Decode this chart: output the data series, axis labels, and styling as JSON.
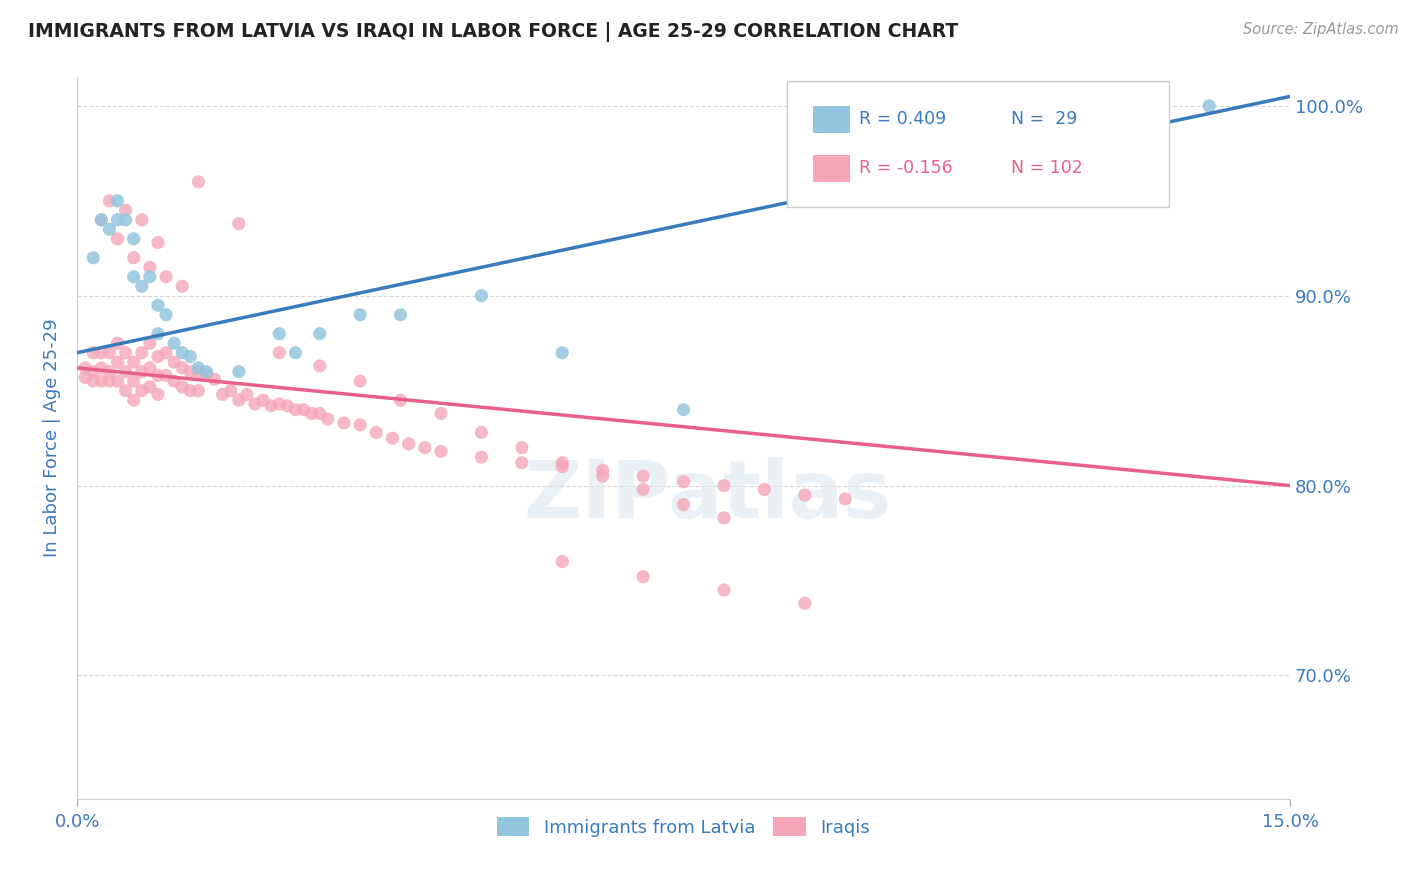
{
  "title": "IMMIGRANTS FROM LATVIA VS IRAQI IN LABOR FORCE | AGE 25-29 CORRELATION CHART",
  "source": "Source: ZipAtlas.com",
  "ylabel": "In Labor Force | Age 25-29",
  "xlim": [
    0.0,
    0.15
  ],
  "ylim": [
    0.635,
    1.015
  ],
  "x_ticks": [
    0.0,
    0.15
  ],
  "x_tick_labels": [
    "0.0%",
    "15.0%"
  ],
  "y_ticks": [
    0.7,
    0.8,
    0.9,
    1.0
  ],
  "y_tick_labels": [
    "70.0%",
    "80.0%",
    "90.0%",
    "100.0%"
  ],
  "legend_labels": [
    "Immigrants from Latvia",
    "Iraqis"
  ],
  "legend_r_values": [
    "R = 0.409",
    "R = -0.156"
  ],
  "legend_n_values": [
    "N =  29",
    "N = 102"
  ],
  "blue_color": "#92c5de",
  "pink_color": "#f4a6b8",
  "blue_line_color": "#3a7abf",
  "pink_line_color": "#e8608a",
  "tick_label_color": "#3a7abf",
  "watermark": "ZIPatlas",
  "blue_line_x": [
    0.0,
    0.15
  ],
  "blue_line_y": [
    0.87,
    1.005
  ],
  "pink_line_x": [
    0.0,
    0.15
  ],
  "pink_line_y": [
    0.862,
    0.8
  ],
  "blue_scatter_x": [
    0.002,
    0.003,
    0.004,
    0.005,
    0.005,
    0.006,
    0.007,
    0.007,
    0.008,
    0.009,
    0.01,
    0.01,
    0.011,
    0.012,
    0.013,
    0.014,
    0.015,
    0.016,
    0.02,
    0.025,
    0.027,
    0.03,
    0.035,
    0.04,
    0.05,
    0.06,
    0.075,
    0.11,
    0.14
  ],
  "blue_scatter_y": [
    0.92,
    0.94,
    0.935,
    0.94,
    0.95,
    0.94,
    0.93,
    0.91,
    0.905,
    0.91,
    0.895,
    0.88,
    0.89,
    0.875,
    0.87,
    0.868,
    0.862,
    0.86,
    0.86,
    0.88,
    0.87,
    0.88,
    0.89,
    0.89,
    0.9,
    0.87,
    0.84,
    0.96,
    1.0
  ],
  "pink_scatter_x": [
    0.001,
    0.001,
    0.002,
    0.002,
    0.002,
    0.003,
    0.003,
    0.003,
    0.004,
    0.004,
    0.004,
    0.005,
    0.005,
    0.005,
    0.006,
    0.006,
    0.006,
    0.007,
    0.007,
    0.007,
    0.008,
    0.008,
    0.008,
    0.009,
    0.009,
    0.009,
    0.01,
    0.01,
    0.01,
    0.011,
    0.011,
    0.012,
    0.012,
    0.013,
    0.013,
    0.014,
    0.014,
    0.015,
    0.015,
    0.016,
    0.017,
    0.018,
    0.019,
    0.02,
    0.021,
    0.022,
    0.023,
    0.024,
    0.025,
    0.026,
    0.027,
    0.028,
    0.029,
    0.03,
    0.031,
    0.033,
    0.035,
    0.037,
    0.039,
    0.041,
    0.043,
    0.045,
    0.05,
    0.055,
    0.06,
    0.065,
    0.07,
    0.075,
    0.08,
    0.085,
    0.09,
    0.095,
    0.003,
    0.005,
    0.007,
    0.009,
    0.011,
    0.013,
    0.004,
    0.006,
    0.008,
    0.01,
    0.015,
    0.02,
    0.025,
    0.03,
    0.035,
    0.04,
    0.045,
    0.05,
    0.055,
    0.06,
    0.065,
    0.07,
    0.075,
    0.08,
    0.06,
    0.07,
    0.08,
    0.09
  ],
  "pink_scatter_y": [
    0.862,
    0.857,
    0.87,
    0.86,
    0.855,
    0.87,
    0.862,
    0.855,
    0.87,
    0.86,
    0.855,
    0.875,
    0.865,
    0.855,
    0.87,
    0.86,
    0.85,
    0.865,
    0.855,
    0.845,
    0.87,
    0.86,
    0.85,
    0.875,
    0.862,
    0.852,
    0.868,
    0.858,
    0.848,
    0.87,
    0.858,
    0.865,
    0.855,
    0.862,
    0.852,
    0.86,
    0.85,
    0.86,
    0.85,
    0.858,
    0.856,
    0.848,
    0.85,
    0.845,
    0.848,
    0.843,
    0.845,
    0.842,
    0.843,
    0.842,
    0.84,
    0.84,
    0.838,
    0.838,
    0.835,
    0.833,
    0.832,
    0.828,
    0.825,
    0.822,
    0.82,
    0.818,
    0.815,
    0.812,
    0.81,
    0.808,
    0.805,
    0.802,
    0.8,
    0.798,
    0.795,
    0.793,
    0.94,
    0.93,
    0.92,
    0.915,
    0.91,
    0.905,
    0.95,
    0.945,
    0.94,
    0.928,
    0.96,
    0.938,
    0.87,
    0.863,
    0.855,
    0.845,
    0.838,
    0.828,
    0.82,
    0.812,
    0.805,
    0.798,
    0.79,
    0.783,
    0.76,
    0.752,
    0.745,
    0.738
  ]
}
